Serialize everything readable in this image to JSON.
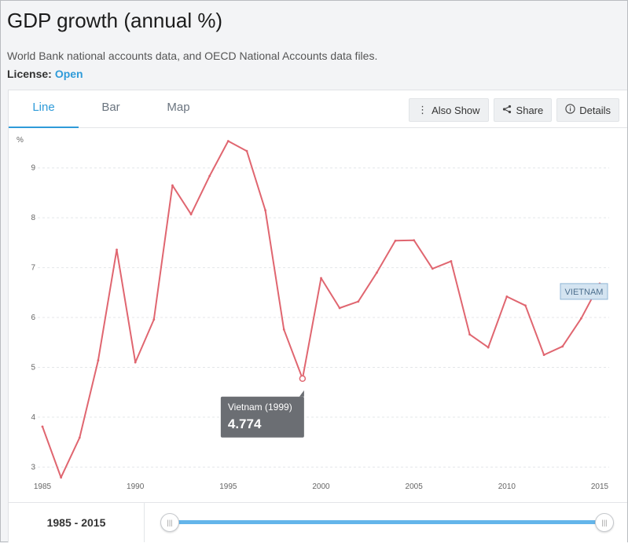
{
  "header": {
    "title": "GDP growth (annual %)",
    "source": "World Bank national accounts data, and OECD National Accounts data files.",
    "license_label": "License:",
    "license_link": "Open"
  },
  "tabs": [
    {
      "label": "Line",
      "active": true
    },
    {
      "label": "Bar",
      "active": false
    },
    {
      "label": "Map",
      "active": false
    }
  ],
  "actions": {
    "also_show": "Also Show",
    "share": "Share",
    "details": "Details"
  },
  "footer": {
    "range_start": "1985",
    "range_sep": "-",
    "range_end": "2015"
  },
  "colors": {
    "series": "#e06670",
    "accent": "#2f9bd9",
    "tooltip_bg": "#6b6e73"
  },
  "chart_data": {
    "type": "line",
    "ylabel": "%",
    "ylim": [
      2.8,
      9.8
    ],
    "xlim": [
      1985,
      2015
    ],
    "x_ticks": [
      1985,
      1990,
      1995,
      2000,
      2005,
      2010,
      2015
    ],
    "y_ticks": [
      3,
      4,
      5,
      6,
      7,
      8,
      9
    ],
    "grid": "horizontal dashed",
    "series": [
      {
        "name": "VIETNAM",
        "x": [
          1985,
          1986,
          1987,
          1988,
          1989,
          1990,
          1991,
          1992,
          1993,
          1994,
          1995,
          1996,
          1997,
          1998,
          1999,
          2000,
          2001,
          2002,
          2003,
          2004,
          2005,
          2006,
          2007,
          2008,
          2009,
          2010,
          2011,
          2012,
          2013,
          2014,
          2015
        ],
        "values": [
          3.81,
          2.79,
          3.59,
          5.14,
          7.36,
          5.1,
          5.96,
          8.65,
          8.07,
          8.84,
          9.54,
          9.34,
          8.15,
          5.76,
          4.774,
          6.79,
          6.19,
          6.32,
          6.9,
          7.54,
          7.55,
          6.98,
          7.13,
          5.66,
          5.4,
          6.42,
          6.24,
          5.25,
          5.42,
          5.98,
          6.68
        ]
      }
    ],
    "tooltip": {
      "title": "Vietnam (1999)",
      "value": "4.774",
      "x": 1999
    }
  }
}
